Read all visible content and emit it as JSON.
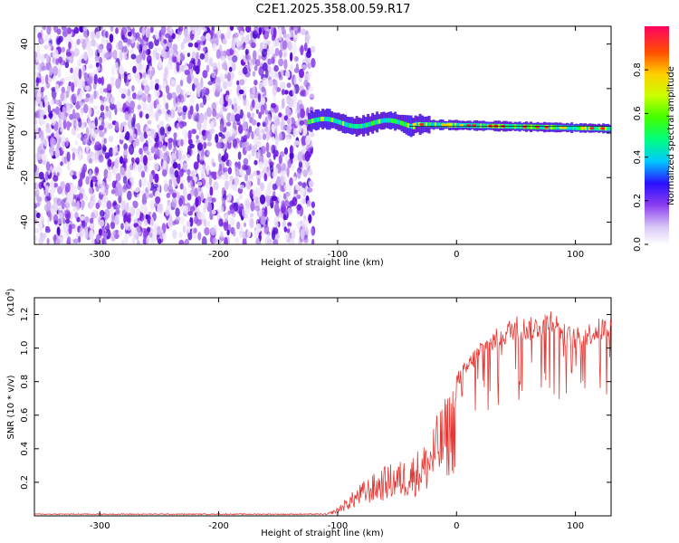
{
  "title": "C2E1.2025.358.00.59.R17",
  "chart_data": [
    {
      "type": "heatmap",
      "name": "spectrogram",
      "xlabel": "Height of straight line (km)",
      "ylabel": "Frequency (Hz)",
      "xlim": [
        -355,
        130
      ],
      "ylim": [
        -50,
        48
      ],
      "xticks": [
        -300,
        -200,
        -100,
        0,
        100
      ],
      "yticks": [
        -40,
        -20,
        0,
        20,
        40
      ],
      "colorbar": {
        "label": "Normalized spectral amplitude",
        "range": [
          0.0,
          1.0
        ],
        "ticks": [
          0.0,
          0.2,
          0.4,
          0.6,
          0.8
        ]
      },
      "regions": [
        {
          "name": "noise",
          "x": [
            -355,
            -125
          ],
          "freq": [
            -50,
            48
          ],
          "amplitude": 0.1
        },
        {
          "name": "signal-track",
          "x": [
            -125,
            130
          ],
          "freq_center_start": 5,
          "freq_center_end": 2,
          "amplitude_peak": 1.0
        }
      ]
    },
    {
      "type": "line",
      "name": "snr",
      "xlabel": "Height of straight line (km)",
      "ylabel": "SNR (10 * v/v)",
      "yscale_label": "(x10",
      "yscale_exp": "4",
      "xlim": [
        -355,
        130
      ],
      "ylim": [
        0.0,
        1.3
      ],
      "xticks": [
        -300,
        -200,
        -100,
        0,
        100
      ],
      "yticks": [
        0.2,
        0.4,
        0.6,
        0.8,
        1.0,
        1.2
      ],
      "ytick_labels": [
        "0.2",
        "0.4",
        "0.6",
        "0.8",
        "1.0",
        "1.2"
      ],
      "color": "#e53935",
      "envelope": {
        "x": [
          -355,
          -110,
          -100,
          -80,
          -60,
          -40,
          -25,
          -20,
          -10,
          0,
          10,
          20,
          30,
          40,
          50,
          60,
          70,
          80,
          90,
          100,
          110,
          120,
          130
        ],
        "y": [
          0.01,
          0.01,
          0.05,
          0.2,
          0.3,
          0.35,
          0.45,
          0.55,
          0.7,
          0.85,
          0.95,
          1.05,
          1.1,
          1.15,
          1.2,
          1.18,
          1.2,
          1.25,
          1.15,
          1.12,
          1.15,
          1.18,
          1.2
        ]
      }
    }
  ]
}
